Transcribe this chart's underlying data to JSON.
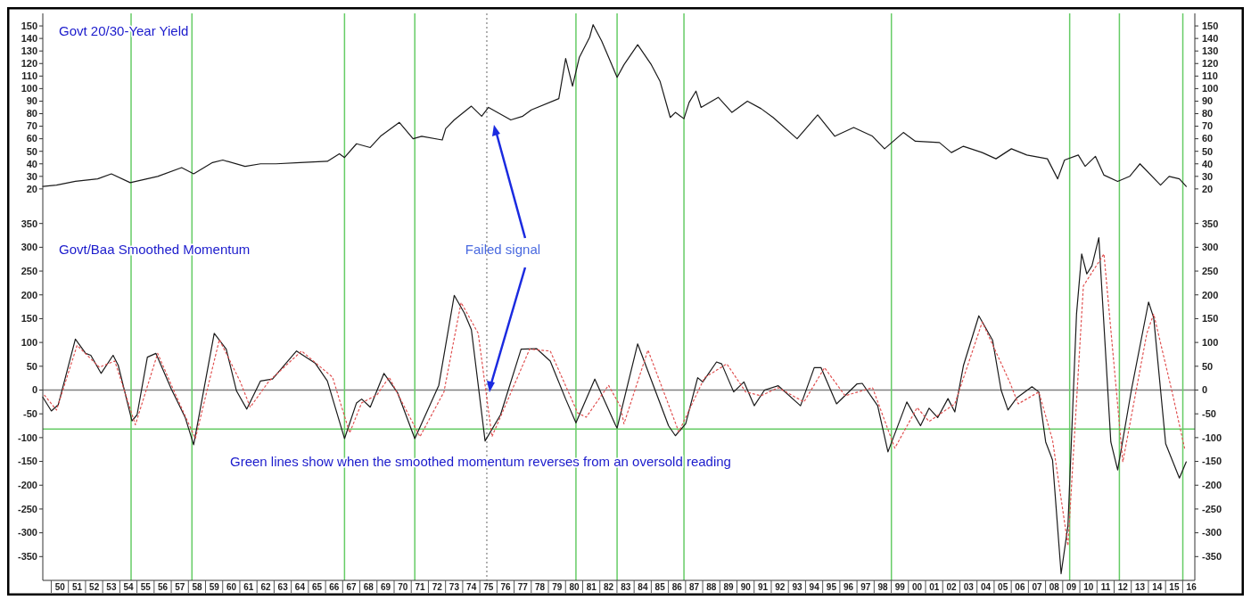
{
  "chart_data": [
    {
      "type": "line",
      "title": "Govt 20/30-Year Yield",
      "tick_labels": "y",
      "xlim": [
        1949,
        2016.2
      ],
      "ylim": [
        0,
        160
      ],
      "yticks": [
        20,
        30,
        40,
        50,
        60,
        70,
        80,
        90,
        100,
        110,
        120,
        130,
        140,
        150
      ],
      "y2lim": [
        0,
        160
      ],
      "y2ticks": [
        20,
        30,
        40,
        50,
        60,
        70,
        80,
        90,
        100,
        110,
        120,
        130,
        140,
        150
      ],
      "series": [
        {
          "color": "#1a1a1a",
          "x": [
            1949.0,
            1949.8,
            1950.9,
            1952.2,
            1953.0,
            1954.1,
            1955.7,
            1957.1,
            1957.8,
            1958.9,
            1959.5,
            1960.8,
            1961.7,
            1962.6,
            1964.0,
            1965.6,
            1966.3,
            1966.6,
            1967.3,
            1968.1,
            1968.7,
            1969.8,
            1970.6,
            1971.1,
            1972.3,
            1972.5,
            1973.0,
            1974.0,
            1974.6,
            1975.0,
            1976.3,
            1977.0,
            1977.5,
            1979.1,
            1979.5,
            1979.9,
            1980.3,
            1980.9,
            1981.1,
            1981.6,
            1982.1,
            1982.5,
            1982.9,
            1983.7,
            1984.5,
            1985.0,
            1985.6,
            1985.9,
            1986.4,
            1986.7,
            1987.1,
            1987.4,
            1988.4,
            1989.2,
            1990.1,
            1990.9,
            1991.6,
            1993.0,
            1994.2,
            1995.2,
            1996.3,
            1997.4,
            1998.1,
            1999.2,
            1999.9,
            2001.3,
            2002.0,
            2002.7,
            2003.8,
            2004.6,
            2005.5,
            2006.4,
            2007.6,
            2008.2,
            2008.6,
            2009.4,
            2009.8,
            2010.4,
            2010.9,
            2011.7,
            2012.4,
            2013.0,
            2014.2,
            2014.7,
            2015.3,
            2015.7
          ],
          "values": [
            22,
            23,
            26,
            28,
            32,
            25,
            30,
            37,
            32,
            41,
            43,
            38,
            40,
            40,
            41,
            42,
            48,
            45,
            56,
            53,
            62,
            73,
            60,
            62,
            59,
            68,
            75,
            86,
            78,
            85,
            75,
            78,
            83,
            92,
            124,
            102,
            125,
            141,
            151,
            138,
            122,
            109,
            119,
            135,
            119,
            106,
            77,
            81,
            76,
            89,
            98,
            85,
            93,
            81,
            90,
            84,
            77,
            60,
            79,
            62,
            69,
            62,
            52,
            65,
            58,
            57,
            49,
            54,
            49,
            44,
            52,
            47,
            44,
            28,
            43,
            47,
            38,
            46,
            31,
            26,
            30,
            40,
            23,
            30,
            28,
            22
          ]
        }
      ],
      "ref_lines": [
        {
          "axis": "x",
          "value": 1954.15,
          "color": "#66cc66"
        },
        {
          "axis": "x",
          "value": 1957.7,
          "color": "#66cc66"
        },
        {
          "axis": "x",
          "value": 1966.6,
          "color": "#66cc66"
        },
        {
          "axis": "x",
          "value": 1970.7,
          "color": "#66cc66"
        },
        {
          "axis": "x",
          "value": 1974.9,
          "color": "#999999",
          "line_style": "dotted"
        },
        {
          "axis": "x",
          "value": 1980.1,
          "color": "#66cc66"
        },
        {
          "axis": "x",
          "value": 1982.5,
          "color": "#66cc66"
        },
        {
          "axis": "x",
          "value": 1986.4,
          "color": "#66cc66"
        },
        {
          "axis": "x",
          "value": 1998.5,
          "color": "#66cc66"
        },
        {
          "axis": "x",
          "value": 2008.9,
          "color": "#66cc66"
        },
        {
          "axis": "x",
          "value": 2011.8,
          "color": "#66cc66"
        },
        {
          "axis": "x",
          "value": 2015.5,
          "color": "#66cc66"
        }
      ]
    },
    {
      "type": "line",
      "title": "Govt/Baa Smoothed Momentum",
      "xlim": [
        1949,
        2016.2
      ],
      "ylim": [
        -400,
        370
      ],
      "yticks": [
        -350,
        -300,
        -250,
        -200,
        -150,
        -100,
        -50,
        0,
        50,
        100,
        150,
        200,
        250,
        300,
        350
      ],
      "y2lim": [
        -400,
        370
      ],
      "y2ticks": [
        -350,
        -300,
        -250,
        -200,
        -150,
        -100,
        -50,
        0,
        50,
        100,
        150,
        200,
        250,
        300,
        350
      ],
      "xticks": [
        {
          "value": 1950,
          "label": "50"
        },
        {
          "value": 1951,
          "label": "51"
        },
        {
          "value": 1952,
          "label": "52"
        },
        {
          "value": 1953,
          "label": "53"
        },
        {
          "value": 1954,
          "label": "54"
        },
        {
          "value": 1955,
          "label": "55"
        },
        {
          "value": 1956,
          "label": "56"
        },
        {
          "value": 1957,
          "label": "57"
        },
        {
          "value": 1958,
          "label": "58"
        },
        {
          "value": 1959,
          "label": "59"
        },
        {
          "value": 1960,
          "label": "60"
        },
        {
          "value": 1961,
          "label": "61"
        },
        {
          "value": 1962,
          "label": "62"
        },
        {
          "value": 1963,
          "label": "63"
        },
        {
          "value": 1964,
          "label": "64"
        },
        {
          "value": 1965,
          "label": "65"
        },
        {
          "value": 1966,
          "label": "66"
        },
        {
          "value": 1967,
          "label": "67"
        },
        {
          "value": 1968,
          "label": "68"
        },
        {
          "value": 1969,
          "label": "69"
        },
        {
          "value": 1970,
          "label": "70"
        },
        {
          "value": 1971,
          "label": "71"
        },
        {
          "value": 1972,
          "label": "72"
        },
        {
          "value": 1973,
          "label": "73"
        },
        {
          "value": 1974,
          "label": "74"
        },
        {
          "value": 1975,
          "label": "75"
        },
        {
          "value": 1976,
          "label": "76"
        },
        {
          "value": 1977,
          "label": "77"
        },
        {
          "value": 1978,
          "label": "78"
        },
        {
          "value": 1979,
          "label": "79"
        },
        {
          "value": 1980,
          "label": "80"
        },
        {
          "value": 1981,
          "label": "81"
        },
        {
          "value": 1982,
          "label": "82"
        },
        {
          "value": 1983,
          "label": "83"
        },
        {
          "value": 1984,
          "label": "84"
        },
        {
          "value": 1985,
          "label": "85"
        },
        {
          "value": 1986,
          "label": "86"
        },
        {
          "value": 1987,
          "label": "87"
        },
        {
          "value": 1988,
          "label": "88"
        },
        {
          "value": 1989,
          "label": "89"
        },
        {
          "value": 1990,
          "label": "90"
        },
        {
          "value": 1991,
          "label": "91"
        },
        {
          "value": 1992,
          "label": "92"
        },
        {
          "value": 1993,
          "label": "93"
        },
        {
          "value": 1994,
          "label": "94"
        },
        {
          "value": 1995,
          "label": "95"
        },
        {
          "value": 1996,
          "label": "96"
        },
        {
          "value": 1997,
          "label": "97"
        },
        {
          "value": 1998,
          "label": "98"
        },
        {
          "value": 1999,
          "label": "99"
        },
        {
          "value": 2000,
          "label": "00"
        },
        {
          "value": 2001,
          "label": "01"
        },
        {
          "value": 2002,
          "label": "02"
        },
        {
          "value": 2003,
          "label": "03"
        },
        {
          "value": 2004,
          "label": "04"
        },
        {
          "value": 2005,
          "label": "05"
        },
        {
          "value": 2006,
          "label": "06"
        },
        {
          "value": 2007,
          "label": "07"
        },
        {
          "value": 2008,
          "label": "08"
        },
        {
          "value": 2009,
          "label": "09"
        },
        {
          "value": 2010,
          "label": "10"
        },
        {
          "value": 2011,
          "label": "11"
        },
        {
          "value": 2012,
          "label": "12"
        },
        {
          "value": 2013,
          "label": "13"
        },
        {
          "value": 2014,
          "label": "14"
        },
        {
          "value": 2015,
          "label": "15"
        },
        {
          "value": 2016,
          "label": "16"
        }
      ],
      "series": [
        {
          "color": "#1a1a1a",
          "x": [
            1949.0,
            1949.5,
            1949.9,
            1950.9,
            1951.5,
            1951.8,
            1952.4,
            1953.1,
            1953.4,
            1954.2,
            1954.5,
            1955.1,
            1955.6,
            1956.5,
            1957.3,
            1957.8,
            1959.0,
            1959.7,
            1960.3,
            1960.9,
            1961.7,
            1962.4,
            1963.8,
            1964.9,
            1965.6,
            1966.6,
            1967.3,
            1967.6,
            1968.1,
            1968.9,
            1969.7,
            1970.7,
            1972.1,
            1973.0,
            1973.6,
            1974.0,
            1974.8,
            1975.7,
            1976.9,
            1977.8,
            1978.6,
            1979.5,
            1980.1,
            1981.2,
            1982.4,
            1982.5,
            1983.7,
            1985.5,
            1985.9,
            1986.5,
            1987.2,
            1987.5,
            1988.3,
            1988.6,
            1989.3,
            1989.9,
            1990.5,
            1991.1,
            1991.9,
            1993.2,
            1994.0,
            1994.4,
            1995.3,
            1996.5,
            1996.8,
            1997.7,
            1998.3,
            1999.4,
            2000.2,
            2000.7,
            2001.2,
            2001.8,
            2002.2,
            2002.7,
            2003.6,
            2004.4,
            2004.9,
            2005.3,
            2005.8,
            2006.7,
            2007.1,
            2007.5,
            2007.9,
            2008.4,
            2008.8,
            2009.3,
            2009.6,
            2009.9,
            2010.2,
            2010.6,
            2011.3,
            2011.7,
            2012.5,
            2013.5,
            2013.8,
            2014.5,
            2015.3,
            2015.7
          ],
          "values": [
            -15,
            -44,
            -31,
            107,
            77,
            73,
            35,
            73,
            52,
            -65,
            -52,
            69,
            77,
            2,
            -57,
            -115,
            119,
            86,
            -2,
            -40,
            19,
            23,
            82,
            56,
            19,
            -102,
            -27,
            -19,
            -36,
            35,
            -6,
            -102,
            10,
            199,
            161,
            127,
            -107,
            -52,
            86,
            87,
            61,
            -19,
            -69,
            23,
            -73,
            -80,
            97,
            -75,
            -96,
            -71,
            26,
            17,
            59,
            55,
            -4,
            17,
            -33,
            0,
            9,
            -33,
            47,
            47,
            -29,
            13,
            14,
            -33,
            -130,
            -25,
            -75,
            -38,
            -58,
            -18,
            -46,
            51,
            156,
            105,
            0,
            -42,
            -17,
            7,
            -4,
            -109,
            -147,
            -386,
            -285,
            160,
            286,
            244,
            261,
            320,
            -109,
            -168,
            0,
            185,
            152,
            -113,
            -185,
            -151
          ]
        },
        {
          "color": "#e05050",
          "line_style": "dotted",
          "x": [
            1949.1,
            1949.8,
            1951.0,
            1952.3,
            1953.2,
            1954.4,
            1955.7,
            1956.7,
            1957.9,
            1959.3,
            1960.5,
            1961.1,
            1962.2,
            1964.1,
            1965.9,
            1966.9,
            1967.6,
            1968.5,
            1969.2,
            1971.0,
            1972.4,
            1973.4,
            1974.4,
            1975.2,
            1976.3,
            1977.4,
            1978.6,
            1980.2,
            1980.7,
            1982.0,
            1982.7,
            1982.9,
            1984.3,
            1986.1,
            1987.6,
            1988.9,
            1990.0,
            1990.9,
            1991.9,
            1993.4,
            1994.6,
            1995.8,
            1997.4,
            1998.7,
            2000.0,
            2000.7,
            2002.2,
            2003.8,
            2005.4,
            2005.9,
            2007.1,
            2007.9,
            2008.8,
            2009.7,
            2010.9,
            2012.0,
            2013.4,
            2013.8,
            2014.9,
            2015.6
          ],
          "values": [
            -11,
            -42,
            94,
            48,
            61,
            -73,
            77,
            -6,
            -102,
            106,
            19,
            -36,
            19,
            82,
            27,
            -90,
            -27,
            -10,
            27,
            -98,
            -4,
            184,
            119,
            -98,
            -6,
            86,
            82,
            -48,
            -57,
            10,
            -35,
            -71,
            84,
            -88,
            26,
            55,
            -4,
            -12,
            5,
            -25,
            47,
            -12,
            5,
            -122,
            -37,
            -66,
            -29,
            143,
            17,
            -29,
            -4,
            -105,
            -327,
            219,
            286,
            -151,
            119,
            160,
            -8,
            -122
          ]
        }
      ],
      "ref_lines": [
        {
          "axis": "y",
          "value": 0,
          "color": "#808080"
        },
        {
          "axis": "y",
          "value": -82,
          "color": "#66cc66"
        },
        {
          "axis": "x",
          "value": 1954.15,
          "color": "#66cc66"
        },
        {
          "axis": "x",
          "value": 1957.7,
          "color": "#66cc66"
        },
        {
          "axis": "x",
          "value": 1966.6,
          "color": "#66cc66"
        },
        {
          "axis": "x",
          "value": 1970.7,
          "color": "#66cc66"
        },
        {
          "axis": "x",
          "value": 1974.9,
          "color": "#999999",
          "line_style": "dotted"
        },
        {
          "axis": "x",
          "value": 1980.1,
          "color": "#66cc66"
        },
        {
          "axis": "x",
          "value": 1982.5,
          "color": "#66cc66"
        },
        {
          "axis": "x",
          "value": 1986.4,
          "color": "#66cc66"
        },
        {
          "axis": "x",
          "value": 1998.5,
          "color": "#66cc66"
        },
        {
          "axis": "x",
          "value": 2008.9,
          "color": "#66cc66"
        },
        {
          "axis": "x",
          "value": 2011.8,
          "color": "#66cc66"
        },
        {
          "axis": "x",
          "value": 2015.5,
          "color": "#66cc66"
        }
      ],
      "annotations": [
        "Failed signal",
        "Green lines show when the smoothed momentum reverses from an oversold reading"
      ]
    }
  ]
}
